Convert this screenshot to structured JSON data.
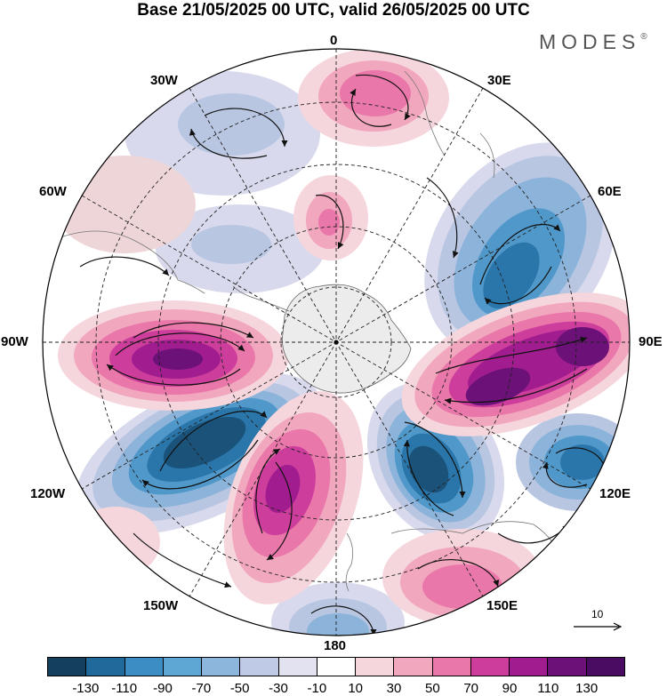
{
  "title": "Base 21/05/2025 00 UTC, valid 26/05/2025 00 UTC",
  "brand": {
    "name": "MODES",
    "mark": "®"
  },
  "longitude_labels": [
    {
      "id": "0",
      "text": "0"
    },
    {
      "id": "30E",
      "text": "30E"
    },
    {
      "id": "60E",
      "text": "60E"
    },
    {
      "id": "90E",
      "text": "90E"
    },
    {
      "id": "120E",
      "text": "120E"
    },
    {
      "id": "150E",
      "text": "150E"
    },
    {
      "id": "180",
      "text": "180"
    },
    {
      "id": "150W",
      "text": "150W"
    },
    {
      "id": "120W",
      "text": "120W"
    },
    {
      "id": "90W",
      "text": "90W"
    },
    {
      "id": "60W",
      "text": "60W"
    },
    {
      "id": "30W",
      "text": "30W"
    }
  ],
  "reference_vector": {
    "value": "10"
  },
  "colorbar": {
    "colors": [
      "#14405e",
      "#1f6a9a",
      "#3b8dc3",
      "#5ea6d3",
      "#8cb6dc",
      "#bfcbe6",
      "#e2e2f0",
      "#ffffff",
      "#f6d6dd",
      "#f1a7be",
      "#ea77a9",
      "#cc3d9c",
      "#a11d8f",
      "#6b1178",
      "#4a0b62"
    ],
    "tick_labels": [
      "-130",
      "-110",
      "-90",
      "-70",
      "-50",
      "-30",
      "-10",
      "10",
      "30",
      "50",
      "70",
      "90",
      "110",
      "130"
    ]
  },
  "map": {
    "projection": "south polar stereographic",
    "field_colors": {
      "neg_light": "#d8d9ec",
      "neg_1": "#b9c6e2",
      "neg_2": "#8cb3da",
      "neg_3": "#4f98c9",
      "neg_4": "#2a76aa",
      "neg_5": "#1a5279",
      "pos_light": "#f6d6dd",
      "pos_1": "#f1a7be",
      "pos_2": "#ea77a9",
      "pos_3": "#cc3d9c",
      "pos_4": "#a11d8f",
      "pos_5": "#6b1178",
      "land": "#ececec"
    }
  }
}
